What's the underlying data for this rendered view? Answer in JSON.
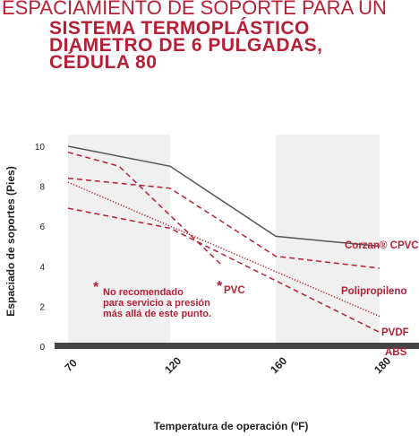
{
  "header": {
    "line1": "ESPACIAMIENTO DE SOPORTE PARA UN",
    "line2": "SISTEMA TERMOPLÁSTICO",
    "line3": "DIAMETRO DE 6 PULGADAS,",
    "line4": "CÉDULA 80"
  },
  "colors": {
    "brand": "#b52036",
    "corzan": "#555555",
    "band": "#f0f0f0",
    "axis": "#444444"
  },
  "note": {
    "star": "*",
    "line1": "No recomendado",
    "line2": "para servicio a presión",
    "line3": "más allá de este punto."
  },
  "chart_data": {
    "type": "line",
    "xlabel": "Temperatura de operación (ºF)",
    "ylabel": "Espaciado de soportes (Pies)",
    "x_ticks": [
      70,
      120,
      160,
      180
    ],
    "y_ticks": [
      0,
      2,
      4,
      6,
      8,
      10
    ],
    "ylim": [
      0,
      10
    ],
    "grid": false,
    "shaded_bands": [
      [
        70,
        120
      ],
      [
        160,
        180
      ]
    ],
    "series": [
      {
        "name": "Corzan® CPVC",
        "style": "solid",
        "color": "#555555",
        "points": [
          [
            70,
            10.0
          ],
          [
            120,
            9.0
          ],
          [
            160,
            5.5
          ],
          [
            180,
            5.0
          ]
        ]
      },
      {
        "name": "Polipropileno",
        "style": "dashed",
        "color": "#b52036",
        "points": [
          [
            70,
            8.4
          ],
          [
            120,
            7.9
          ],
          [
            160,
            4.5
          ],
          [
            180,
            3.9
          ]
        ]
      },
      {
        "name": "PVDF",
        "style": "dotted",
        "color": "#b52036",
        "points": [
          [
            70,
            8.2
          ],
          [
            180,
            1.5
          ]
        ]
      },
      {
        "name": "ABS",
        "style": "dashed",
        "color": "#b52036",
        "points": [
          [
            70,
            6.9
          ],
          [
            120,
            5.9
          ],
          [
            180,
            0.7
          ]
        ]
      },
      {
        "name": "PVC",
        "style": "dashed",
        "color": "#b52036",
        "points": [
          [
            70,
            9.7
          ],
          [
            95,
            9.0
          ],
          [
            140,
            4.0
          ]
        ]
      }
    ]
  }
}
